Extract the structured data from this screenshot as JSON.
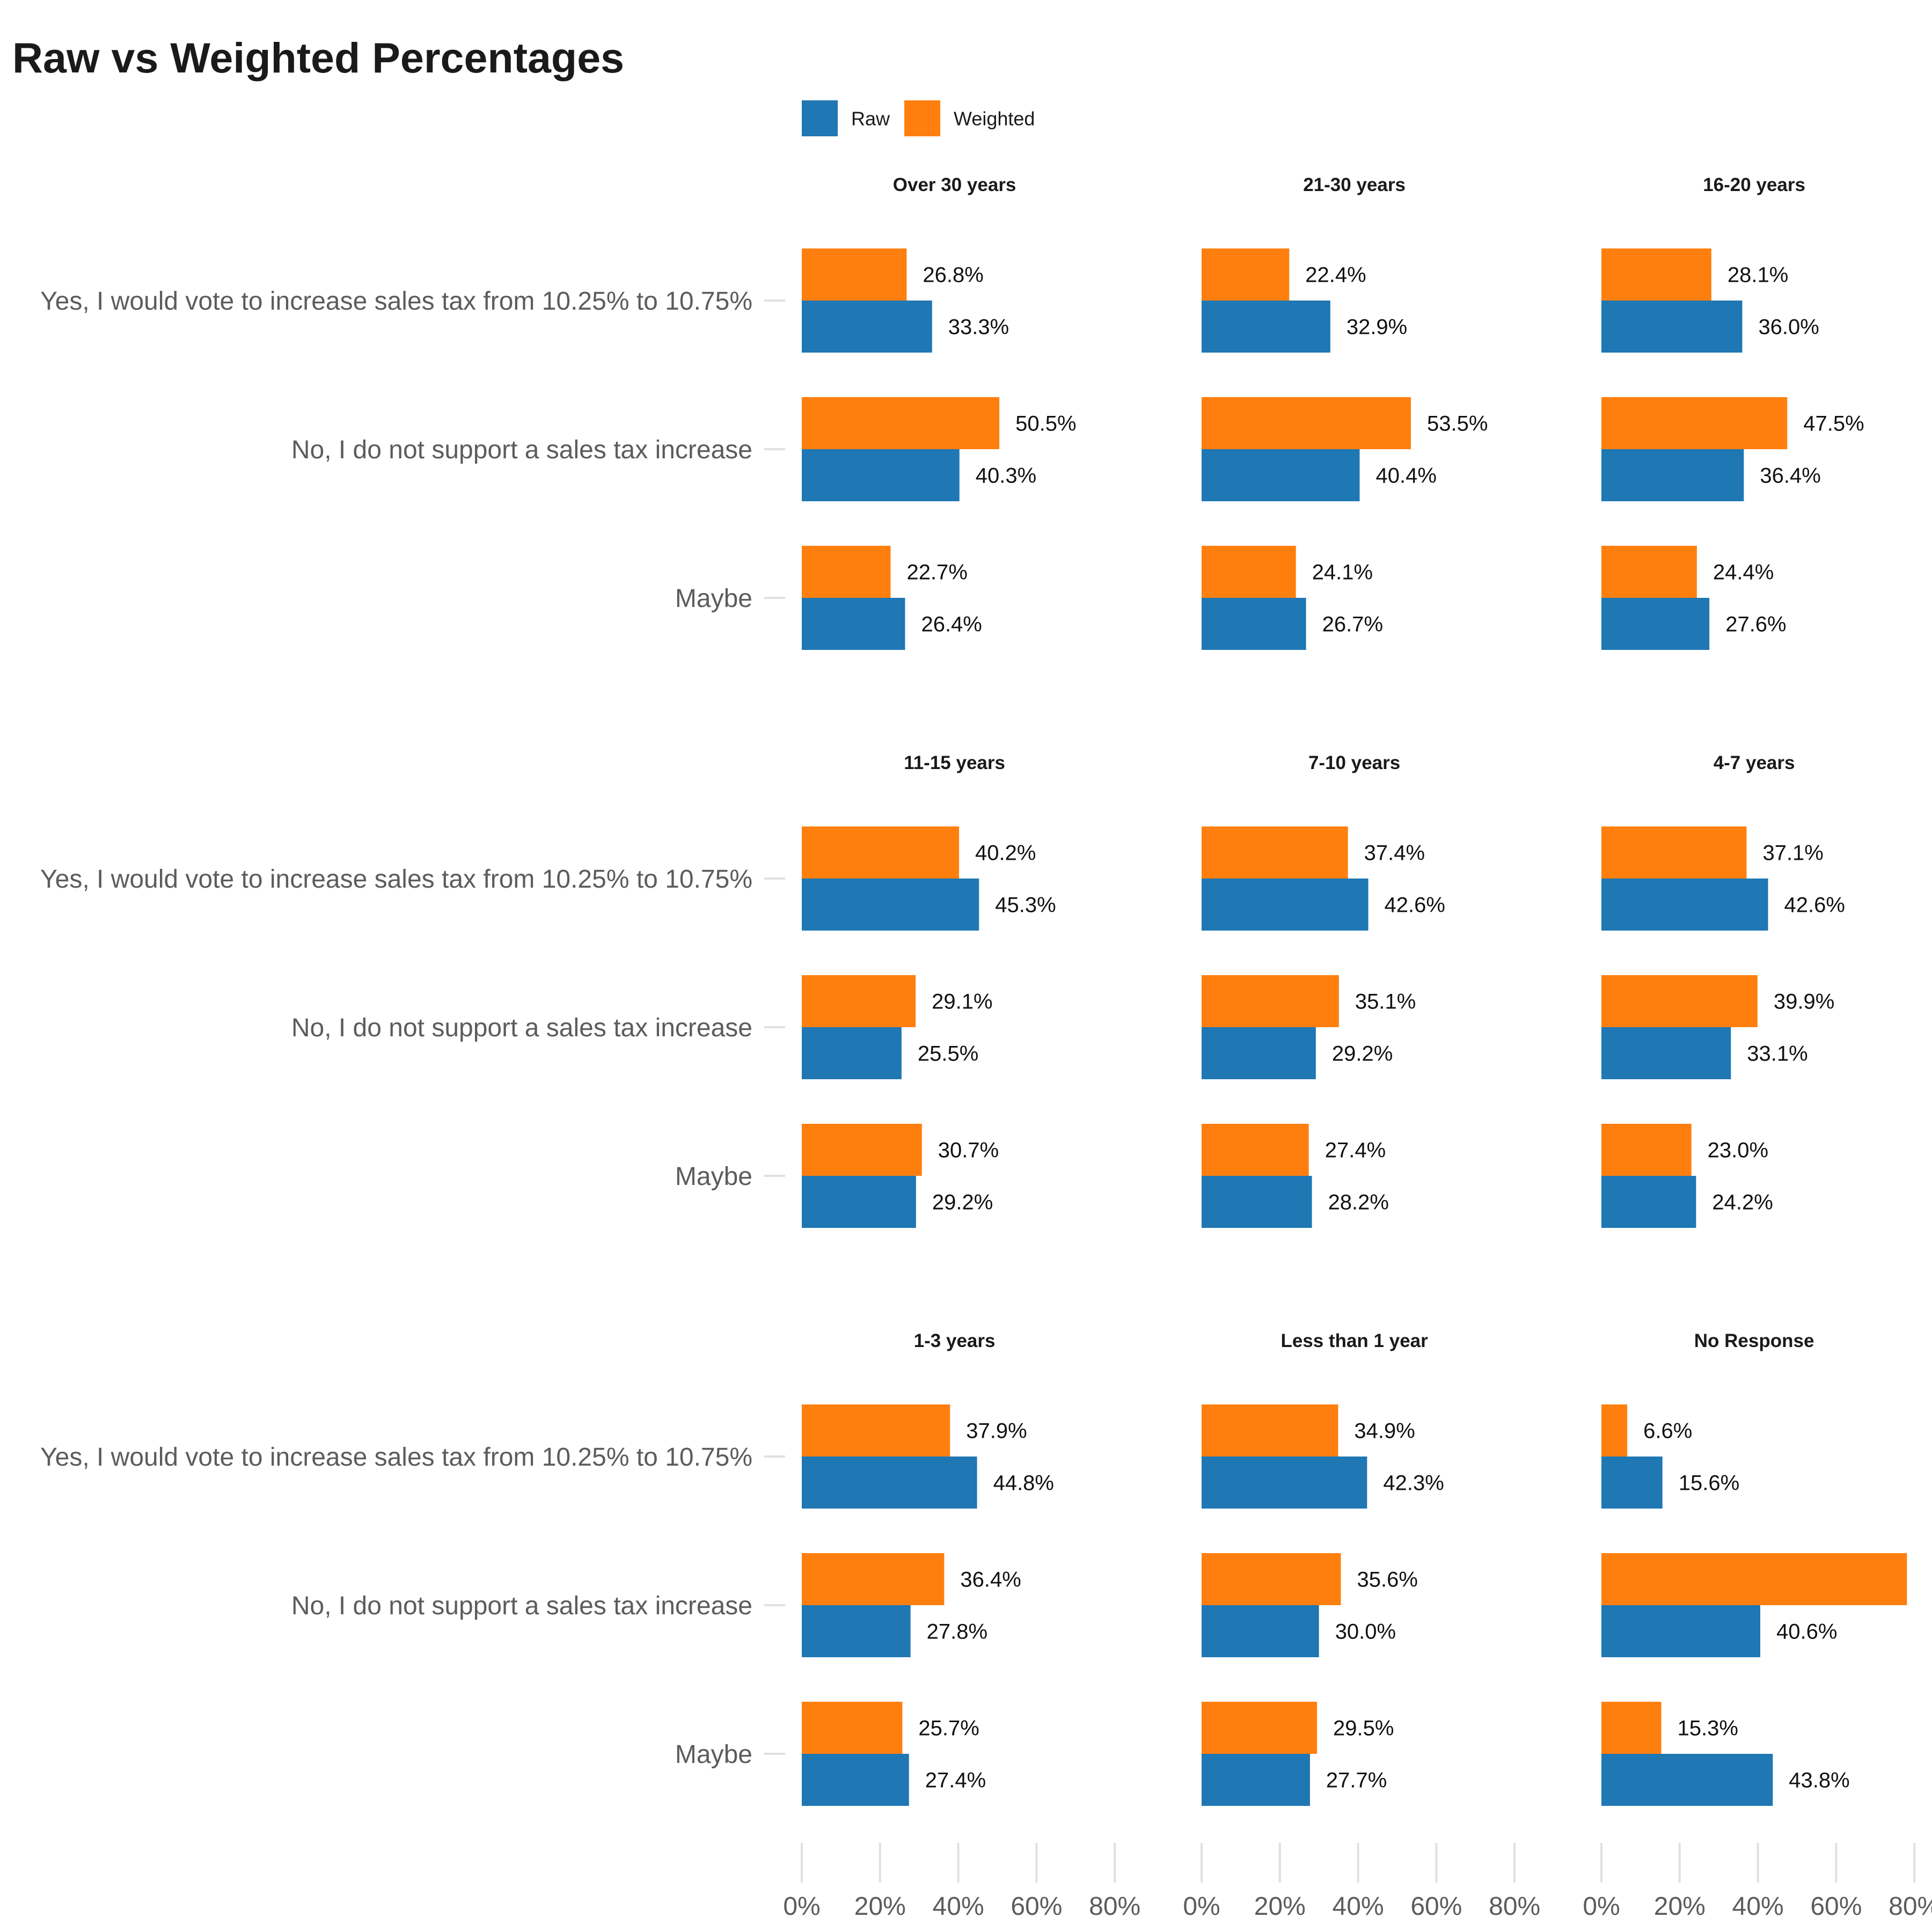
{
  "chart_data": {
    "type": "bar",
    "title": "Raw vs Weighted Percentages",
    "categories": [
      "Yes, I would vote to increase sales tax from 10.25% to 10.75%",
      "No, I do not support a sales tax increase",
      "Maybe"
    ],
    "legend": {
      "placement": "top",
      "entries": [
        "Raw",
        "Weighted"
      ]
    },
    "colors": {
      "Raw": "#1f77b4",
      "Weighted": "#ff7f0e"
    },
    "x_axis": {
      "ticks": [
        0,
        20,
        40,
        60,
        80
      ],
      "tick_labels": [
        "0%",
        "20%",
        "40%",
        "60%",
        "80%"
      ],
      "xlim": [
        0,
        80
      ]
    },
    "grid": false,
    "panels": [
      {
        "title": "Over 30 years",
        "series": [
          {
            "name": "Raw",
            "values": [
              33.3,
              40.3,
              26.4
            ],
            "labels": [
              "33.3%",
              "40.3%",
              "26.4%"
            ]
          },
          {
            "name": "Weighted",
            "values": [
              26.8,
              50.5,
              22.7
            ],
            "labels": [
              "26.8%",
              "50.5%",
              "22.7%"
            ]
          }
        ]
      },
      {
        "title": "21-30 years",
        "series": [
          {
            "name": "Raw",
            "values": [
              32.9,
              40.4,
              26.7
            ],
            "labels": [
              "32.9%",
              "40.4%",
              "26.7%"
            ]
          },
          {
            "name": "Weighted",
            "values": [
              22.4,
              53.5,
              24.1
            ],
            "labels": [
              "22.4%",
              "53.5%",
              "24.1%"
            ]
          }
        ]
      },
      {
        "title": "16-20 years",
        "series": [
          {
            "name": "Raw",
            "values": [
              36.0,
              36.4,
              27.6
            ],
            "labels": [
              "36.0%",
              "36.4%",
              "27.6%"
            ]
          },
          {
            "name": "Weighted",
            "values": [
              28.1,
              47.5,
              24.4
            ],
            "labels": [
              "28.1%",
              "47.5%",
              "24.4%"
            ]
          }
        ]
      },
      {
        "title": "11-15 years",
        "series": [
          {
            "name": "Raw",
            "values": [
              45.3,
              25.5,
              29.2
            ],
            "labels": [
              "45.3%",
              "25.5%",
              "29.2%"
            ]
          },
          {
            "name": "Weighted",
            "values": [
              40.2,
              29.1,
              30.7
            ],
            "labels": [
              "40.2%",
              "29.1%",
              "30.7%"
            ]
          }
        ]
      },
      {
        "title": "7-10 years",
        "series": [
          {
            "name": "Raw",
            "values": [
              42.6,
              29.2,
              28.2
            ],
            "labels": [
              "42.6%",
              "29.2%",
              "28.2%"
            ]
          },
          {
            "name": "Weighted",
            "values": [
              37.4,
              35.1,
              27.4
            ],
            "labels": [
              "37.4%",
              "35.1%",
              "27.4%"
            ]
          }
        ]
      },
      {
        "title": "4-7 years",
        "series": [
          {
            "name": "Raw",
            "values": [
              42.6,
              33.1,
              24.2
            ],
            "labels": [
              "42.6%",
              "33.1%",
              "24.2%"
            ]
          },
          {
            "name": "Weighted",
            "values": [
              37.1,
              39.9,
              23.0
            ],
            "labels": [
              "37.1%",
              "39.9%",
              "23.0%"
            ]
          }
        ]
      },
      {
        "title": "1-3 years",
        "series": [
          {
            "name": "Raw",
            "values": [
              44.8,
              27.8,
              27.4
            ],
            "labels": [
              "44.8%",
              "27.8%",
              "27.4%"
            ]
          },
          {
            "name": "Weighted",
            "values": [
              37.9,
              36.4,
              25.7
            ],
            "labels": [
              "37.9%",
              "36.4%",
              "25.7%"
            ]
          }
        ]
      },
      {
        "title": "Less than 1 year",
        "series": [
          {
            "name": "Raw",
            "values": [
              42.3,
              30.0,
              27.7
            ],
            "labels": [
              "42.3%",
              "30.0%",
              "27.7%"
            ]
          },
          {
            "name": "Weighted",
            "values": [
              34.9,
              35.6,
              29.5
            ],
            "labels": [
              "34.9%",
              "35.6%",
              "29.5%"
            ]
          }
        ]
      },
      {
        "title": "No Response",
        "series": [
          {
            "name": "Raw",
            "values": [
              15.6,
              40.6,
              43.8
            ],
            "labels": [
              "15.6%",
              "40.6%",
              "43.8%"
            ]
          },
          {
            "name": "Weighted",
            "values": [
              6.6,
              78.1,
              15.3
            ],
            "labels": [
              "6.6%",
              "",
              "15.3%"
            ]
          }
        ]
      }
    ]
  }
}
